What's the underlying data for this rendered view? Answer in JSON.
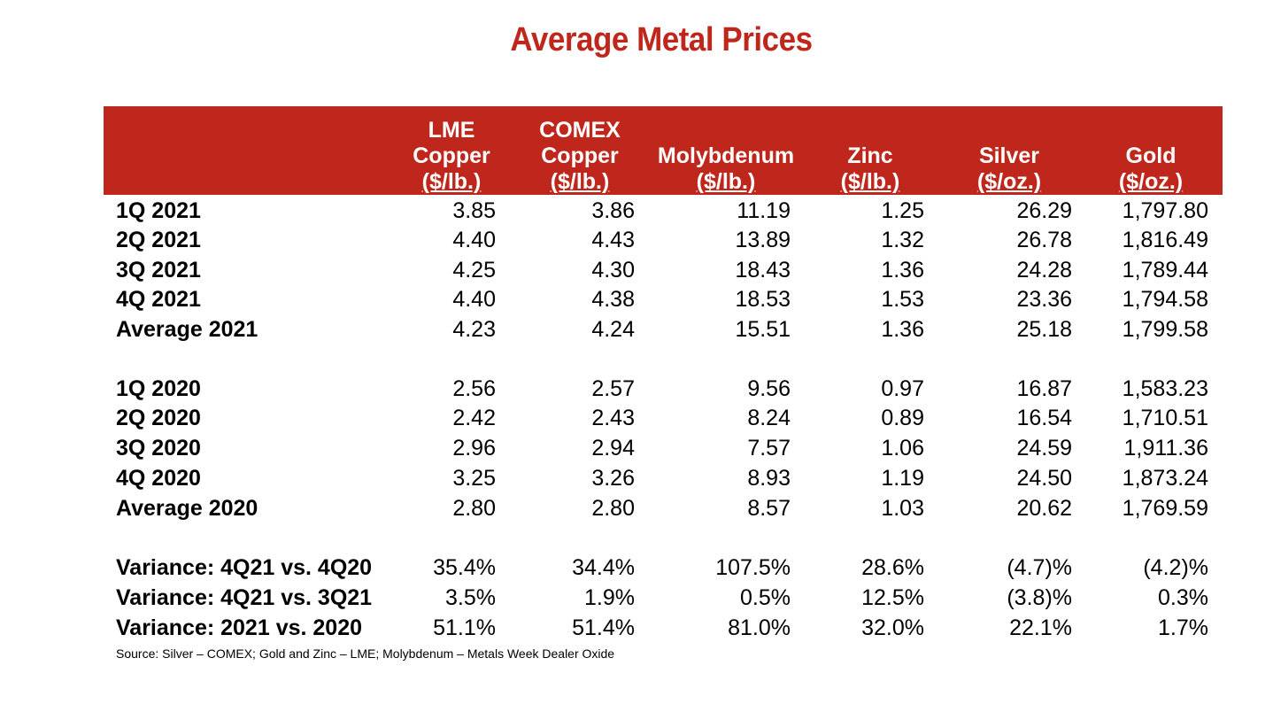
{
  "title": "Average Metal Prices",
  "headers": [
    {
      "line1": "LME",
      "line2": "Copper",
      "unit": "($/lb.)"
    },
    {
      "line1": "COMEX",
      "line2": "Copper",
      "unit": "($/lb.)"
    },
    {
      "line1": "",
      "line2": "Molybdenum",
      "unit": "($/lb.)"
    },
    {
      "line1": "",
      "line2": "Zinc",
      "unit": "($/lb.)"
    },
    {
      "line1": "",
      "line2": "Silver",
      "unit": "($/oz.)"
    },
    {
      "line1": "",
      "line2": "Gold",
      "unit": "($/oz.)"
    }
  ],
  "rows": [
    {
      "label": "1Q 2021",
      "values": [
        "3.85",
        "3.86",
        "11.19",
        "1.25",
        "26.29",
        "1,797.80"
      ]
    },
    {
      "label": "2Q 2021",
      "values": [
        "4.40",
        "4.43",
        "13.89",
        "1.32",
        "26.78",
        "1,816.49"
      ]
    },
    {
      "label": "3Q 2021",
      "values": [
        "4.25",
        "4.30",
        "18.43",
        "1.36",
        "24.28",
        "1,789.44"
      ]
    },
    {
      "label": "4Q 2021",
      "values": [
        "4.40",
        "4.38",
        "18.53",
        "1.53",
        "23.36",
        "1,794.58"
      ]
    },
    {
      "label": "Average 2021",
      "values": [
        "4.23",
        "4.24",
        "15.51",
        "1.36",
        "25.18",
        "1,799.58"
      ]
    },
    {
      "label": "1Q 2020",
      "values": [
        "2.56",
        "2.57",
        "9.56",
        "0.97",
        "16.87",
        "1,583.23"
      ]
    },
    {
      "label": "2Q 2020",
      "values": [
        "2.42",
        "2.43",
        "8.24",
        "0.89",
        "16.54",
        "1,710.51"
      ]
    },
    {
      "label": "3Q 2020",
      "values": [
        "2.96",
        "2.94",
        "7.57",
        "1.06",
        "24.59",
        "1,911.36"
      ]
    },
    {
      "label": "4Q 2020",
      "values": [
        "3.25",
        "3.26",
        "8.93",
        "1.19",
        "24.50",
        "1,873.24"
      ]
    },
    {
      "label": "Average 2020",
      "values": [
        "2.80",
        "2.80",
        "8.57",
        "1.03",
        "20.62",
        "1,769.59"
      ]
    },
    {
      "label": "Variance: 4Q21 vs. 4Q20",
      "values": [
        "35.4%",
        "34.4%",
        "107.5%",
        "28.6%",
        "(4.7)%",
        "(4.2)%"
      ]
    },
    {
      "label": "Variance: 4Q21 vs. 3Q21",
      "values": [
        "3.5%",
        "1.9%",
        "0.5%",
        "12.5%",
        "(3.8)%",
        "0.3%"
      ]
    },
    {
      "label": "Variance: 2021 vs. 2020",
      "values": [
        "51.1%",
        "51.4%",
        "81.0%",
        "32.0%",
        "22.1%",
        "1.7%"
      ]
    }
  ],
  "source": "Source:  Silver – COMEX; Gold and Zinc – LME; Molybdenum – Metals Week Dealer Oxide",
  "colors": {
    "accent": "#c0271c",
    "header_text": "#ffffff"
  }
}
